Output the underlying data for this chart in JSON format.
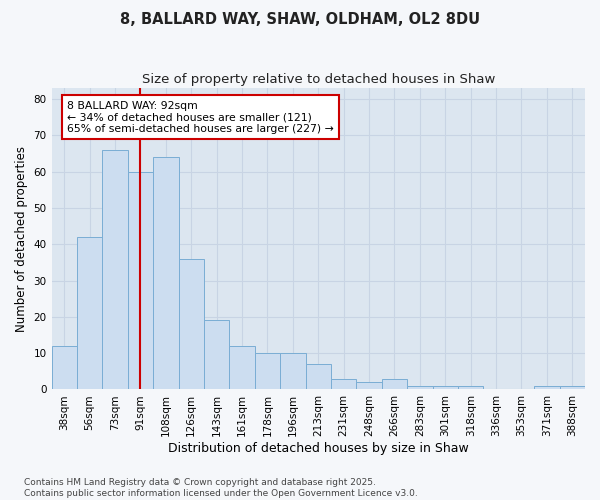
{
  "title1": "8, BALLARD WAY, SHAW, OLDHAM, OL2 8DU",
  "title2": "Size of property relative to detached houses in Shaw",
  "xlabel": "Distribution of detached houses by size in Shaw",
  "ylabel": "Number of detached properties",
  "categories": [
    "38sqm",
    "56sqm",
    "73sqm",
    "91sqm",
    "108sqm",
    "126sqm",
    "143sqm",
    "161sqm",
    "178sqm",
    "196sqm",
    "213sqm",
    "231sqm",
    "248sqm",
    "266sqm",
    "283sqm",
    "301sqm",
    "318sqm",
    "336sqm",
    "353sqm",
    "371sqm",
    "388sqm"
  ],
  "values": [
    12,
    42,
    66,
    60,
    64,
    36,
    19,
    12,
    10,
    10,
    7,
    3,
    2,
    3,
    1,
    1,
    1,
    0,
    0,
    1,
    1
  ],
  "bar_color": "#ccddf0",
  "bar_edge_color": "#7aadd4",
  "grid_color": "#c8d4e4",
  "background_color": "#dce6f0",
  "fig_background": "#f5f7fa",
  "vline_x_index": 3,
  "vline_color": "#cc0000",
  "annotation_text": "8 BALLARD WAY: 92sqm\n← 34% of detached houses are smaller (121)\n65% of semi-detached houses are larger (227) →",
  "annotation_box_facecolor": "#ffffff",
  "annotation_box_edgecolor": "#cc0000",
  "ylim": [
    0,
    83
  ],
  "yticks": [
    0,
    10,
    20,
    30,
    40,
    50,
    60,
    70,
    80
  ],
  "footer": "Contains HM Land Registry data © Crown copyright and database right 2025.\nContains public sector information licensed under the Open Government Licence v3.0.",
  "title1_fontsize": 10.5,
  "title2_fontsize": 9.5,
  "xlabel_fontsize": 9,
  "ylabel_fontsize": 8.5,
  "tick_fontsize": 7.5,
  "annot_fontsize": 7.8,
  "footer_fontsize": 6.5
}
